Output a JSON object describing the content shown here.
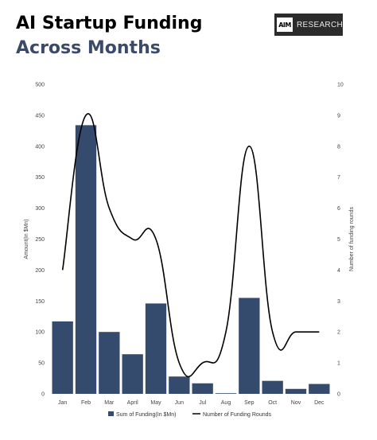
{
  "header": {
    "title_part1": "AI Startup Funding ",
    "title_part2": "Across Months",
    "logo_mark": "AIM",
    "logo_word": "RESEARCH"
  },
  "colors": {
    "bar": "#344b6d",
    "line": "#000000",
    "title_accent": "#3a4a6b"
  },
  "chart_data": {
    "type": "bar",
    "categories": [
      "Jan",
      "Feb",
      "Mar",
      "April",
      "May",
      "Jun",
      "Jul",
      "Aug",
      "Sep",
      "Oct",
      "Nov",
      "Dec"
    ],
    "series": [
      {
        "name": "Sum of Funding(In $Mn)",
        "kind": "bar",
        "axis": "left",
        "values": [
          117,
          434,
          100,
          64,
          146,
          28,
          17,
          1,
          155,
          21,
          8,
          16
        ]
      },
      {
        "name": "Number of Funding Rounds",
        "kind": "line",
        "axis": "right",
        "values": [
          4,
          9,
          6,
          5,
          5,
          1,
          1,
          2,
          8,
          2,
          2,
          2
        ]
      }
    ],
    "ylabel": "Amount(In $Mn)",
    "y2label": "Number of funding rounds",
    "ylim": [
      0,
      500
    ],
    "y2lim": [
      0,
      10
    ],
    "yticks": [
      "0",
      "50",
      "100",
      "150",
      "200",
      "250",
      "300",
      "350",
      "400",
      "450",
      "500"
    ],
    "y2ticks": [
      "0",
      "1",
      "2",
      "3",
      "4",
      "5",
      "6",
      "7",
      "8",
      "9",
      "10"
    ],
    "grid": false,
    "legend": "bottom"
  }
}
